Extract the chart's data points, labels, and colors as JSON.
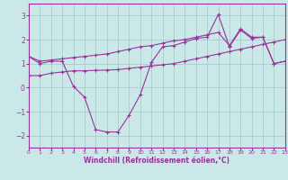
{
  "xlabel": "Windchill (Refroidissement éolien,°C)",
  "xlim": [
    0,
    23
  ],
  "ylim": [
    -2.5,
    3.5
  ],
  "yticks": [
    -2,
    -1,
    0,
    1,
    2,
    3
  ],
  "xticks": [
    0,
    1,
    2,
    3,
    4,
    5,
    6,
    7,
    8,
    9,
    10,
    11,
    12,
    13,
    14,
    15,
    16,
    17,
    18,
    19,
    20,
    21,
    22,
    23
  ],
  "background_color": "#cbe8e8",
  "grid_color": "#a8cccc",
  "line_color": "#993399",
  "curve1_x": [
    0,
    1,
    2,
    3,
    4,
    5,
    6,
    7,
    8,
    9,
    10,
    11,
    12,
    13,
    14,
    15,
    16,
    17,
    18,
    19,
    20,
    21,
    22,
    23
  ],
  "curve1_y": [
    1.3,
    1.0,
    1.1,
    1.1,
    0.05,
    -0.4,
    -1.75,
    -1.85,
    -1.85,
    -1.15,
    -0.3,
    1.05,
    1.7,
    1.75,
    1.9,
    2.05,
    2.1,
    3.05,
    1.7,
    2.4,
    2.05,
    2.1,
    1.0,
    1.1
  ],
  "curve2_x": [
    0,
    1,
    2,
    3,
    4,
    5,
    6,
    7,
    8,
    9,
    10,
    11,
    12,
    13,
    14,
    15,
    16,
    17,
    18,
    19,
    20,
    21,
    22,
    23
  ],
  "curve2_y": [
    0.5,
    0.5,
    0.6,
    0.65,
    0.7,
    0.7,
    0.72,
    0.73,
    0.75,
    0.8,
    0.85,
    0.9,
    0.95,
    1.0,
    1.1,
    1.2,
    1.3,
    1.4,
    1.5,
    1.6,
    1.7,
    1.8,
    1.9,
    2.0
  ],
  "curve3_x": [
    0,
    1,
    2,
    3,
    4,
    5,
    6,
    7,
    8,
    9,
    10,
    11,
    12,
    13,
    14,
    15,
    16,
    17,
    18,
    19,
    20,
    21,
    22,
    23
  ],
  "curve3_y": [
    1.3,
    1.1,
    1.15,
    1.2,
    1.25,
    1.3,
    1.35,
    1.4,
    1.5,
    1.6,
    1.7,
    1.75,
    1.85,
    1.95,
    2.0,
    2.1,
    2.2,
    2.3,
    1.75,
    2.45,
    2.1,
    2.1,
    1.0,
    1.1
  ]
}
